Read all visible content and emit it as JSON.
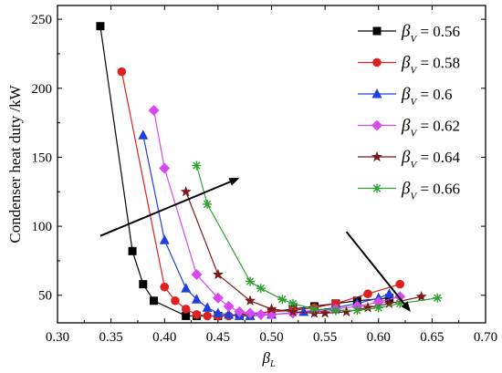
{
  "chart_data": {
    "type": "line",
    "xlabel": "β",
    "xlabel_subscript": "L",
    "ylabel": "Condenser heat duty /kW",
    "xlim": [
      0.3,
      0.7
    ],
    "ylim": [
      30,
      260
    ],
    "xticks": [
      "0.30",
      "0.35",
      "0.40",
      "0.45",
      "0.50",
      "0.55",
      "0.60",
      "0.65",
      "0.70"
    ],
    "yticks": [
      "50",
      "100",
      "150",
      "200",
      "250"
    ],
    "legend_position": "top-right",
    "series": [
      {
        "name": "β",
        "name_subscript": "V",
        "value_label": " = 0.56",
        "color": "#000000",
        "marker": "square",
        "x": [
          0.34,
          0.37,
          0.38,
          0.39,
          0.42,
          0.43,
          0.45,
          0.47,
          0.5,
          0.52,
          0.54,
          0.56,
          0.58,
          0.61
        ],
        "y": [
          245,
          82,
          58,
          46,
          35,
          35,
          35,
          36,
          38,
          40,
          42,
          44,
          46,
          48
        ]
      },
      {
        "name": "β",
        "name_subscript": "V",
        "value_label": " = 0.58",
        "color": "#e02020",
        "marker": "circle",
        "x": [
          0.36,
          0.4,
          0.41,
          0.42,
          0.43,
          0.44,
          0.45,
          0.46,
          0.48,
          0.5,
          0.52,
          0.54,
          0.56,
          0.59,
          0.62
        ],
        "y": [
          212,
          56,
          46,
          40,
          36,
          35,
          35,
          35,
          36,
          38,
          39,
          41,
          44,
          51,
          58
        ]
      },
      {
        "name": "β",
        "name_subscript": "V",
        "value_label": " = 0.6",
        "color": "#1f3fe0",
        "marker": "triangle",
        "x": [
          0.38,
          0.4,
          0.42,
          0.43,
          0.44,
          0.45,
          0.46,
          0.47,
          0.48,
          0.5,
          0.53,
          0.56,
          0.58,
          0.6,
          0.61
        ],
        "y": [
          166,
          90,
          55,
          47,
          41,
          37,
          36,
          35,
          35,
          36,
          38,
          41,
          44,
          48,
          51
        ]
      },
      {
        "name": "β",
        "name_subscript": "V",
        "value_label": " = 0.62",
        "color": "#d64af0",
        "marker": "diamond",
        "x": [
          0.39,
          0.4,
          0.43,
          0.45,
          0.46,
          0.47,
          0.48,
          0.49,
          0.5,
          0.52,
          0.54,
          0.56,
          0.58,
          0.6,
          0.62
        ],
        "y": [
          184,
          142,
          65,
          48,
          42,
          38,
          37,
          36,
          36,
          37,
          38,
          40,
          42,
          45,
          49
        ]
      },
      {
        "name": "β",
        "name_subscript": "V",
        "value_label": " = 0.64",
        "color": "#7a1b1b",
        "marker": "star",
        "x": [
          0.42,
          0.45,
          0.48,
          0.5,
          0.52,
          0.54,
          0.55,
          0.57,
          0.59,
          0.61,
          0.64
        ],
        "y": [
          125,
          65,
          46,
          40,
          38,
          37,
          37,
          38,
          41,
          44,
          49
        ]
      },
      {
        "name": "β",
        "name_subscript": "V",
        "value_label": " = 0.66",
        "color": "#2ea02e",
        "marker": "asterisk",
        "x": [
          0.43,
          0.44,
          0.48,
          0.49,
          0.51,
          0.52,
          0.54,
          0.56,
          0.58,
          0.6,
          0.62,
          0.655
        ],
        "y": [
          144,
          116,
          60,
          55,
          47,
          44,
          40,
          39,
          39,
          41,
          44,
          48
        ]
      }
    ],
    "annotations": [
      {
        "type": "arrow",
        "from": [
          0.34,
          93
        ],
        "to": [
          0.47,
          135
        ]
      },
      {
        "type": "arrow",
        "from": [
          0.57,
          96
        ],
        "to": [
          0.63,
          38
        ]
      }
    ]
  }
}
